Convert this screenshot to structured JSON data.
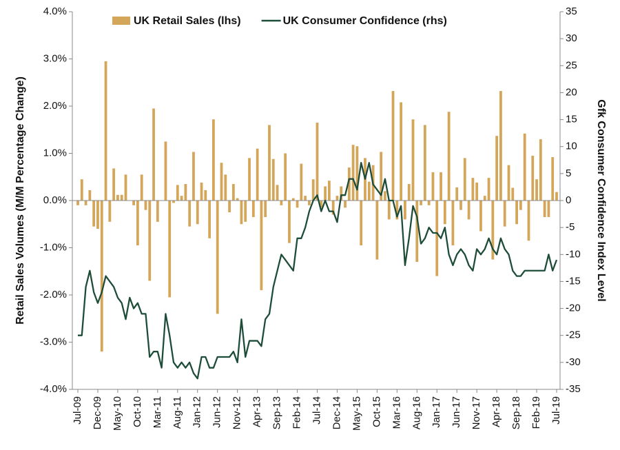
{
  "chart_data": {
    "type": "bar-line",
    "y_label": "Retail Sales Volumes (M/M Percentage Change)",
    "y2_label": "Gfk Consumer Confidence Index Level",
    "categories": [
      "Jul-09",
      null,
      null,
      null,
      null,
      "Dec-09",
      null,
      null,
      null,
      null,
      "May-10",
      null,
      null,
      null,
      null,
      "Oct-10",
      null,
      null,
      null,
      null,
      "Mar-11",
      null,
      null,
      null,
      null,
      "Aug-11",
      null,
      null,
      null,
      null,
      "Jan-12",
      null,
      null,
      null,
      null,
      "Jun-12",
      null,
      null,
      null,
      null,
      "Nov-12",
      null,
      null,
      null,
      null,
      "Apr-13",
      null,
      null,
      null,
      null,
      "Sep-13",
      null,
      null,
      null,
      null,
      "Feb-14",
      null,
      null,
      null,
      null,
      "Jul-14",
      null,
      null,
      null,
      null,
      "Dec-14",
      null,
      null,
      null,
      null,
      "May-15",
      null,
      null,
      null,
      null,
      "Oct-15",
      null,
      null,
      null,
      null,
      "Mar-16",
      null,
      null,
      null,
      null,
      "Aug-16",
      null,
      null,
      null,
      null,
      "Jan-17",
      null,
      null,
      null,
      null,
      "Jun-17",
      null,
      null,
      null,
      null,
      "Nov-17",
      null,
      null,
      null,
      null,
      "Apr-18",
      null,
      null,
      null,
      null,
      "Sep-18",
      null,
      null,
      null,
      null,
      "Feb-19",
      null,
      null,
      null,
      null,
      "Jul-19"
    ],
    "series": [
      {
        "name": "UK Retail Sales (lhs)",
        "type": "bar",
        "color": "#d4a65a",
        "values": [
          -0.1,
          0.45,
          -0.1,
          0.22,
          -0.55,
          -0.6,
          -3.2,
          2.95,
          -0.45,
          0.68,
          0.12,
          0.12,
          0.55,
          0,
          -0.1,
          -0.95,
          0.55,
          -0.2,
          -1.7,
          1.95,
          -0.45,
          0,
          1.25,
          -2.05,
          -0.05,
          0.33,
          0.1,
          0.35,
          -0.55,
          1.03,
          -0.5,
          0.38,
          0.22,
          -0.8,
          1.72,
          -2.4,
          0.8,
          0.55,
          -0.25,
          0.35,
          0.05,
          -0.5,
          -0.45,
          0.9,
          -0.35,
          1.1,
          -1.9,
          -0.35,
          1.6,
          0.88,
          0.33,
          -0.1,
          1.0,
          -0.9,
          0.05,
          -0.15,
          0.78,
          0.1,
          -0.1,
          0.45,
          1.65,
          -0.15,
          0.3,
          0.42,
          -0.3,
          0.1,
          0.3,
          -0.15,
          0.7,
          1.18,
          1.15,
          -0.95,
          0.9,
          0.4,
          0.75,
          -1.25,
          1.03,
          0.2,
          -0.4,
          2.32,
          -0.4,
          2.08,
          -0.4,
          0.35,
          1.72,
          -1.3,
          -0.1,
          1.6,
          -0.1,
          0.6,
          -1.6,
          0.6,
          -0.5,
          1.88,
          -0.95,
          0.28,
          -0.2,
          0.9,
          -0.4,
          0.48,
          0.38,
          -0.65,
          0.1,
          0.48,
          -1.25,
          1.37,
          2.32,
          -0.55,
          0.75,
          0.27,
          -0.5,
          -0.2,
          1.42,
          -0.85,
          0.95,
          0.45,
          1.3,
          -0.35,
          -0.35,
          0.92,
          0.18
        ]
      },
      {
        "name": "UK Consumer Confidence (rhs)",
        "type": "line",
        "axis": "y2",
        "color": "#1d4d38",
        "values": [
          -25,
          -25,
          -16,
          -13,
          -17,
          -19,
          -17,
          -14,
          -15,
          -16,
          -18,
          -19,
          -22,
          -18,
          -20,
          -19,
          -21,
          -21,
          -29,
          -28,
          -28,
          -31,
          -21,
          -25,
          -30,
          -31,
          -30,
          -31,
          -30,
          -32,
          -33,
          -29,
          -29,
          -31,
          -31,
          -29,
          -29,
          -29,
          -29,
          -28,
          -30,
          -22,
          -29,
          -26,
          -26,
          -26,
          -27,
          -22,
          -21,
          -16,
          -13,
          -10,
          -11,
          -12,
          -13,
          -7,
          -7,
          -5,
          -2,
          0,
          1,
          -2,
          0,
          -2,
          -2,
          -4,
          1,
          1,
          4,
          4,
          2,
          7,
          4,
          7,
          3,
          2,
          1,
          4,
          0,
          0,
          -3,
          -1,
          -12,
          -7,
          -1,
          -3,
          -8,
          -7,
          -5,
          -6,
          -6,
          -7,
          -5,
          -10,
          -12,
          -10,
          -9,
          -10,
          -12,
          -13,
          -9,
          -10,
          -9,
          -7,
          -9,
          -10,
          -7,
          -9,
          -10,
          -13,
          -14,
          -14,
          -13,
          -13,
          -13,
          -13,
          -13,
          -13,
          -10,
          -13,
          -11
        ]
      }
    ],
    "ylim": [
      -4,
      4
    ],
    "yticks": [
      {
        "value": -4,
        "label": "-4.0%"
      },
      {
        "value": -3,
        "label": "-3.0%"
      },
      {
        "value": -2,
        "label": "-2.0%"
      },
      {
        "value": -1,
        "label": "-1.0%"
      },
      {
        "value": 0,
        "label": "0.0%"
      },
      {
        "value": 1,
        "label": "1.0%"
      },
      {
        "value": 2,
        "label": "2.0%"
      },
      {
        "value": 3,
        "label": "3.0%"
      },
      {
        "value": 4,
        "label": "4.0%"
      }
    ],
    "y2lim": [
      -35,
      35
    ],
    "y2ticks": [
      -35,
      -30,
      -25,
      -20,
      -15,
      -10,
      -5,
      0,
      5,
      10,
      15,
      20,
      25,
      30,
      35
    ],
    "grid": false,
    "legend": "top"
  }
}
